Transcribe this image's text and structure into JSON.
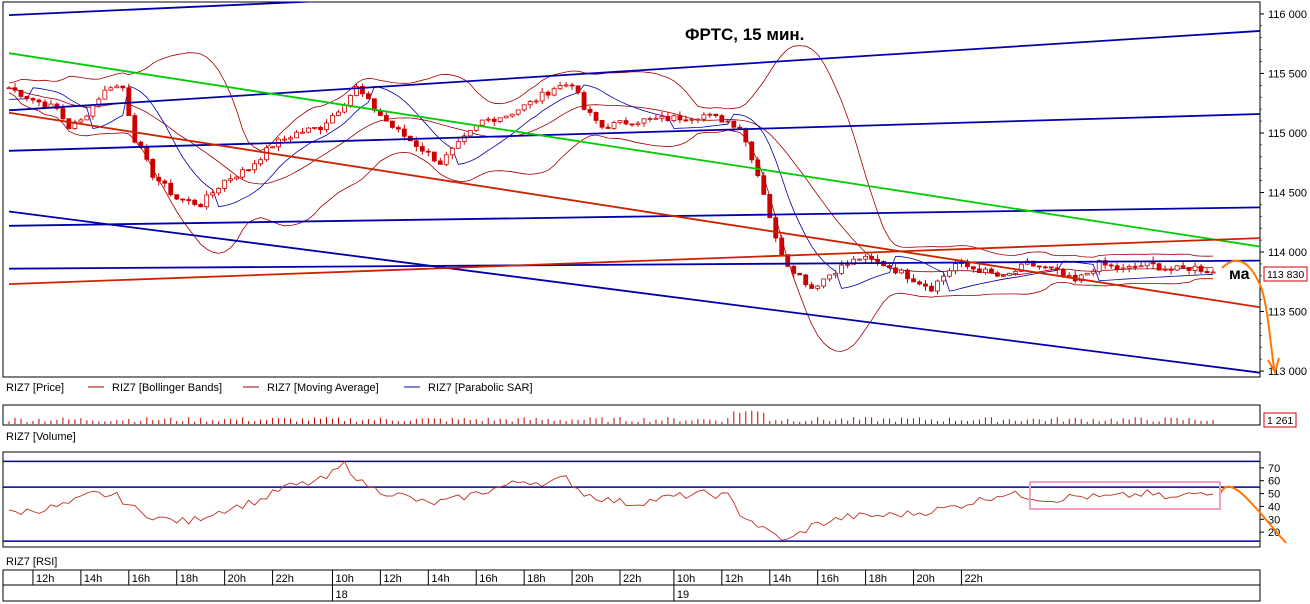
{
  "chart_data": [
    {
      "type": "candlestick",
      "title": "ФРТС, 15 мин.",
      "annotation": "ма",
      "legend": [
        {
          "label": "RIZ7 [Price]",
          "color": "#cc0000"
        },
        {
          "label": "RIZ7 [Bollinger Bands]",
          "color": "#a00000"
        },
        {
          "label": "RIZ7 [Moving Average]",
          "color": "#a00000"
        },
        {
          "label": "RIZ7 [Parabolic SAR]",
          "color": "#0000aa"
        }
      ],
      "y_ticks": [
        "116 000",
        "115 500",
        "115 000",
        "114 500",
        "114 000",
        "113 500",
        "113 000"
      ],
      "y_range": [
        112950,
        116100
      ],
      "last_price": "113 830",
      "last_price_value": 113830,
      "close_path": [
        [
          0,
          115380
        ],
        [
          4,
          115280
        ],
        [
          8,
          115200
        ],
        [
          10,
          115050
        ],
        [
          12,
          115100
        ],
        [
          15,
          115300
        ],
        [
          17,
          115400
        ],
        [
          19,
          115380
        ],
        [
          21,
          114950
        ],
        [
          24,
          114650
        ],
        [
          28,
          114450
        ],
        [
          32,
          114400
        ],
        [
          36,
          114600
        ],
        [
          40,
          114700
        ],
        [
          44,
          114900
        ],
        [
          48,
          115000
        ],
        [
          52,
          115050
        ],
        [
          55,
          115200
        ],
        [
          58,
          115380
        ],
        [
          61,
          115200
        ],
        [
          64,
          115050
        ],
        [
          68,
          114900
        ],
        [
          72,
          114750
        ],
        [
          75,
          114900
        ],
        [
          79,
          115100
        ],
        [
          83,
          115150
        ],
        [
          87,
          115250
        ],
        [
          91,
          115380
        ],
        [
          94,
          115420
        ],
        [
          96,
          115200
        ],
        [
          99,
          115050
        ],
        [
          104,
          115100
        ],
        [
          110,
          115120
        ],
        [
          116,
          115150
        ],
        [
          120,
          115100
        ],
        [
          122,
          115050
        ],
        [
          124,
          114800
        ],
        [
          126,
          114500
        ],
        [
          128,
          114100
        ],
        [
          130,
          113900
        ],
        [
          134,
          113700
        ],
        [
          138,
          113850
        ],
        [
          142,
          113950
        ],
        [
          146,
          113900
        ],
        [
          150,
          113800
        ],
        [
          154,
          113700
        ],
        [
          158,
          113900
        ],
        [
          162,
          113850
        ],
        [
          166,
          113780
        ],
        [
          170,
          113900
        ],
        [
          174,
          113850
        ],
        [
          178,
          113750
        ],
        [
          182,
          113900
        ],
        [
          186,
          113850
        ],
        [
          190,
          113900
        ],
        [
          194,
          113850
        ],
        [
          198,
          113870
        ],
        [
          201,
          113830
        ]
      ],
      "candles_count": 202,
      "trend_lines": [
        {
          "color": "#0000aa",
          "points": [
            [
              0,
              115990
            ],
            [
              208,
              116460
            ]
          ]
        },
        {
          "color": "#0000aa",
          "points": [
            [
              0,
              115190
            ],
            [
              216,
              115880
            ]
          ]
        },
        {
          "color": "#0000aa",
          "points": [
            [
              0,
              114850
            ],
            [
              216,
              115170
            ]
          ]
        },
        {
          "color": "#0000aa",
          "points": [
            [
              0,
              114220
            ],
            [
              216,
              114380
            ]
          ]
        },
        {
          "color": "#0000aa",
          "points": [
            [
              0,
              113860
            ],
            [
              216,
              113930
            ]
          ]
        },
        {
          "color": "#0000aa",
          "points": [
            [
              0,
              114340
            ],
            [
              216,
              112940
            ]
          ]
        },
        {
          "color": "#00cc00",
          "points": [
            [
              0,
              115670
            ],
            [
              216,
              113990
            ]
          ]
        },
        {
          "color": "#cc2200",
          "points": [
            [
              0,
              115170
            ],
            [
              216,
              113480
            ]
          ]
        },
        {
          "color": "#cc2200",
          "points": [
            [
              0,
              113730
            ],
            [
              216,
              114130
            ]
          ]
        }
      ]
    },
    {
      "type": "bar",
      "label": "RIZ7 [Volume]",
      "last_value": "1 261"
    },
    {
      "type": "line",
      "label": "RIZ7 [RSI]",
      "y_ticks": [
        "70",
        "60",
        "50",
        "40",
        "30",
        "20"
      ],
      "y_range": [
        10,
        80
      ],
      "levels": [
        75,
        55,
        13
      ],
      "values_path": [
        [
          0,
          35
        ],
        [
          6,
          38
        ],
        [
          10,
          42
        ],
        [
          14,
          50
        ],
        [
          18,
          48
        ],
        [
          22,
          35
        ],
        [
          26,
          30
        ],
        [
          30,
          28
        ],
        [
          34,
          35
        ],
        [
          38,
          40
        ],
        [
          42,
          45
        ],
        [
          46,
          55
        ],
        [
          50,
          58
        ],
        [
          53,
          62
        ],
        [
          56,
          73
        ],
        [
          59,
          58
        ],
        [
          62,
          52
        ],
        [
          66,
          48
        ],
        [
          70,
          42
        ],
        [
          74,
          45
        ],
        [
          78,
          50
        ],
        [
          82,
          55
        ],
        [
          86,
          60
        ],
        [
          90,
          58
        ],
        [
          93,
          62
        ],
        [
          96,
          50
        ],
        [
          100,
          45
        ],
        [
          104,
          42
        ],
        [
          110,
          47
        ],
        [
          116,
          50
        ],
        [
          120,
          48
        ],
        [
          122,
          35
        ],
        [
          126,
          22
        ],
        [
          130,
          13
        ],
        [
          134,
          25
        ],
        [
          140,
          32
        ],
        [
          146,
          33
        ],
        [
          152,
          35
        ],
        [
          158,
          40
        ],
        [
          162,
          45
        ],
        [
          166,
          50
        ],
        [
          170,
          48
        ],
        [
          174,
          45
        ],
        [
          178,
          48
        ],
        [
          182,
          47
        ],
        [
          186,
          48
        ],
        [
          190,
          50
        ],
        [
          194,
          46
        ],
        [
          198,
          50
        ],
        [
          201,
          52
        ]
      ]
    }
  ],
  "x_axis": {
    "ticks": [
      {
        "idx": 4,
        "label": "12h"
      },
      {
        "idx": 12,
        "label": "14h"
      },
      {
        "idx": 20,
        "label": "16h"
      },
      {
        "idx": 28,
        "label": "18h"
      },
      {
        "idx": 36,
        "label": "20h"
      },
      {
        "idx": 44,
        "label": "22h"
      },
      {
        "idx": 54,
        "label": "10h"
      },
      {
        "idx": 62,
        "label": "12h"
      },
      {
        "idx": 70,
        "label": "14h"
      },
      {
        "idx": 78,
        "label": "16h"
      },
      {
        "idx": 86,
        "label": "18h"
      },
      {
        "idx": 94,
        "label": "20h"
      },
      {
        "idx": 102,
        "label": "22h"
      },
      {
        "idx": 111,
        "label": "10h"
      },
      {
        "idx": 119,
        "label": "12h"
      },
      {
        "idx": 127,
        "label": "14h"
      },
      {
        "idx": 135,
        "label": "16h"
      },
      {
        "idx": 143,
        "label": "18h"
      },
      {
        "idx": 151,
        "label": "20h"
      },
      {
        "idx": 159,
        "label": "22h"
      }
    ],
    "dates": [
      {
        "idx": 54,
        "label": "18"
      },
      {
        "idx": 111,
        "label": "19"
      }
    ]
  },
  "colors": {
    "frame": "#000000",
    "panel_bg": "#ffffff",
    "candle_up": "#cc0000",
    "candle_down": "#cc0000",
    "price_label_border": "#cc0000",
    "rsi_line": "#c03020",
    "rsi_levels": "#000099",
    "highlight_box": "#f0a0c0",
    "forecast": "#ff7700"
  }
}
